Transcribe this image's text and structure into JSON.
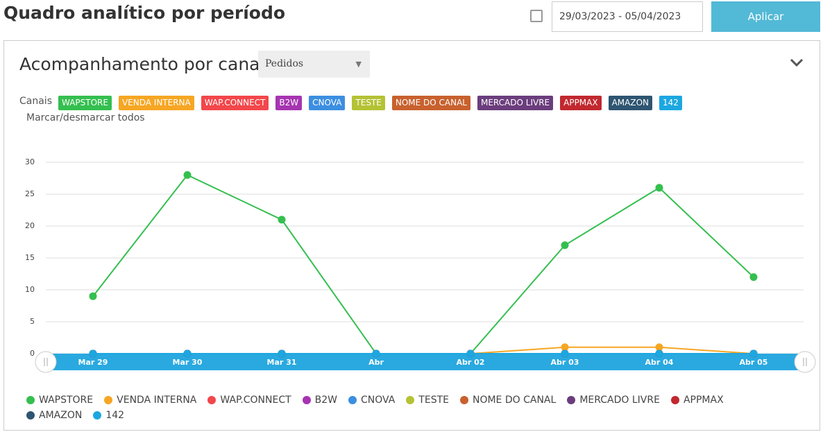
{
  "header": {
    "title": "Quadro analítico por período",
    "date_range": "29/03/2023 - 05/04/2023",
    "apply": "Aplicar"
  },
  "panel": {
    "title": "Acompanhamento por canal",
    "metric": "Pedidos",
    "channels_label": "Canais",
    "toggle_all": "Marcar/desmarcar todos"
  },
  "chart_data": {
    "type": "line",
    "categories": [
      "Mar 29",
      "Mar 30",
      "Mar 31",
      "Abr",
      "Abr 02",
      "Abr 03",
      "Abr 04",
      "Abr 05"
    ],
    "ylim": [
      0,
      30
    ],
    "yticks": [
      0,
      5,
      10,
      15,
      20,
      25,
      30
    ],
    "grid": true,
    "series": [
      {
        "name": "WAPSTORE",
        "color": "#34bf4f",
        "values": [
          9,
          28,
          21,
          0,
          0,
          17,
          26,
          12
        ]
      },
      {
        "name": "VENDA INTERNA",
        "color": "#f6a623",
        "values": [
          0,
          0,
          0,
          0,
          0,
          1,
          1,
          0
        ]
      },
      {
        "name": "WAP.CONNECT",
        "color": "#f2474b",
        "values": [
          0,
          0,
          0,
          0,
          0,
          0,
          0,
          0
        ]
      },
      {
        "name": "B2W",
        "color": "#a634b1",
        "values": [
          0,
          0,
          0,
          0,
          0,
          0,
          0,
          0
        ]
      },
      {
        "name": "CNOVA",
        "color": "#3c8ee1",
        "values": [
          0,
          0,
          0,
          0,
          0,
          0,
          0,
          0
        ]
      },
      {
        "name": "TESTE",
        "color": "#b4c235",
        "values": [
          0,
          0,
          0,
          0,
          0,
          0,
          0,
          0
        ]
      },
      {
        "name": "NOME DO CANAL",
        "color": "#c8612e",
        "values": [
          0,
          0,
          0,
          0,
          0,
          0,
          0,
          0
        ]
      },
      {
        "name": "MERCADO LIVRE",
        "color": "#6b3d7d",
        "values": [
          0,
          0,
          0,
          0,
          0,
          0,
          0,
          0
        ]
      },
      {
        "name": "APPMAX",
        "color": "#c1282f",
        "values": [
          0,
          0,
          0,
          0,
          0,
          0,
          0,
          0
        ]
      },
      {
        "name": "AMAZON",
        "color": "#2e5571",
        "values": [
          0,
          0,
          0,
          0,
          0,
          0,
          0,
          0
        ]
      },
      {
        "name": "142",
        "color": "#1ca7e1",
        "values": [
          0,
          0,
          0,
          0,
          0,
          0,
          0,
          0
        ]
      }
    ]
  }
}
